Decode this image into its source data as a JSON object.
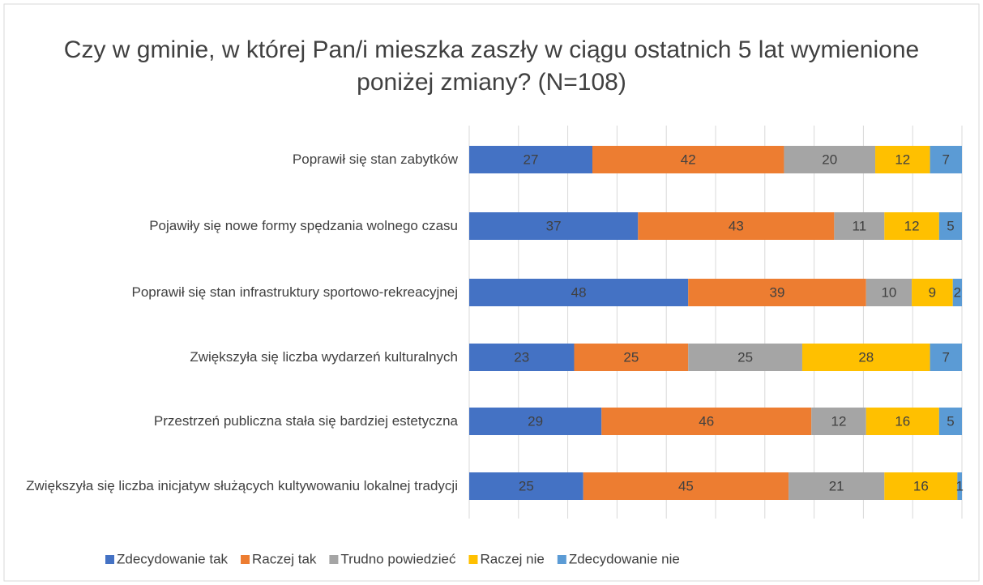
{
  "chart_data": {
    "type": "stacked_barh",
    "title": "Czy w gminie, w której Pan/i mieszka zaszły w ciągu ostatnich 5 lat wymienione poniżej zmiany? (N=108)",
    "categories": [
      "Poprawił się stan zabytków",
      "Pojawiły się nowe formy spędzania wolnego czasu",
      "Poprawił się stan infrastruktury sportowo-rekreacyjnej",
      "Zwiększyła się liczba wydarzeń kulturalnych",
      "Przestrzeń publiczna stała się bardziej estetyczna",
      "Zwiększyła się liczba inicjatyw służących kultywowaniu lokalnej tradycji"
    ],
    "series": [
      {
        "name": "Zdecydowanie tak",
        "color": "#4472c4",
        "values": [
          27,
          37,
          48,
          23,
          29,
          25
        ]
      },
      {
        "name": "Raczej tak",
        "color": "#ed7d31",
        "values": [
          42,
          43,
          39,
          25,
          46,
          45
        ]
      },
      {
        "name": "Trudno powiedzieć",
        "color": "#a5a5a5",
        "values": [
          20,
          11,
          10,
          25,
          12,
          21
        ]
      },
      {
        "name": "Raczej nie",
        "color": "#ffc000",
        "values": [
          12,
          12,
          9,
          28,
          16,
          16
        ]
      },
      {
        "name": "Zdecydowanie nie",
        "color": "#5b9bd5",
        "values": [
          7,
          5,
          2,
          7,
          5,
          1
        ]
      }
    ],
    "xlim": [
      0,
      108
    ],
    "xticks": [
      0,
      10.8,
      21.6,
      32.4,
      43.2,
      54,
      64.8,
      75.6,
      86.4,
      97.2,
      108
    ],
    "grid": true,
    "legend": "bottom"
  }
}
